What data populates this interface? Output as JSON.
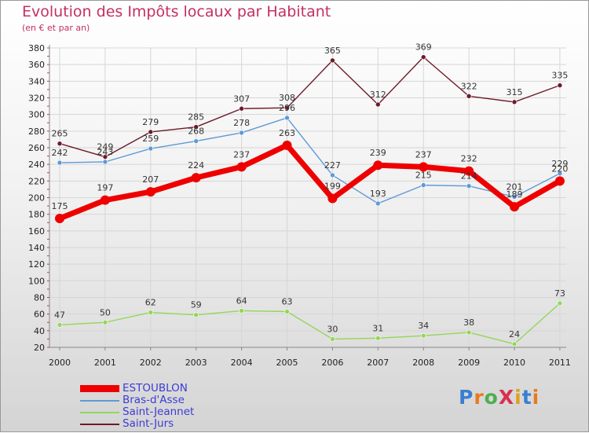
{
  "title": "Evolution des Impôts locaux par Habitant",
  "subtitle": "(en € et par an)",
  "logo": {
    "text": "ProXiti",
    "letter_colors": [
      "#3a7fd0",
      "#e87a1e",
      "#4caf50",
      "#d9304f",
      "#e0a020",
      "#3a7fd0",
      "#e87a1e"
    ]
  },
  "chart_data": {
    "type": "line",
    "title": "Evolution des Impôts locaux par Habitant",
    "subtitle": "(en € et par an)",
    "x": [
      "2000",
      "2001",
      "2002",
      "2003",
      "2004",
      "2005",
      "2006",
      "2007",
      "2008",
      "2009",
      "2010",
      "2011"
    ],
    "ylim": [
      20,
      380
    ],
    "yticks": [
      20,
      40,
      60,
      80,
      100,
      120,
      140,
      160,
      180,
      200,
      220,
      240,
      260,
      280,
      300,
      320,
      340,
      360,
      380
    ],
    "grid": true,
    "legend_position": "bottom-left",
    "series": [
      {
        "name": "Saint-Jurs",
        "color": "#6e1a2a",
        "values": [
          265,
          249,
          279,
          285,
          307,
          308,
          365,
          312,
          369,
          322,
          315,
          335
        ]
      },
      {
        "name": "Bras-d'Asse",
        "color": "#5e9ad6",
        "values": [
          242,
          243,
          259,
          268,
          278,
          296,
          227,
          193,
          215,
          214,
          201,
          229
        ]
      },
      {
        "name": "Saint-Jeannet",
        "color": "#93d65a",
        "values": [
          47,
          50,
          62,
          59,
          64,
          63,
          30,
          31,
          34,
          38,
          24,
          73
        ]
      },
      {
        "name": "ESTOUBLON",
        "color": "#ee0000",
        "values": [
          175,
          197,
          207,
          224,
          237,
          263,
          199,
          239,
          237,
          232,
          189,
          220
        ]
      }
    ],
    "legend_order": [
      "ESTOUBLON",
      "Bras-d'Asse",
      "Saint-Jeannet",
      "Saint-Jurs"
    ]
  }
}
